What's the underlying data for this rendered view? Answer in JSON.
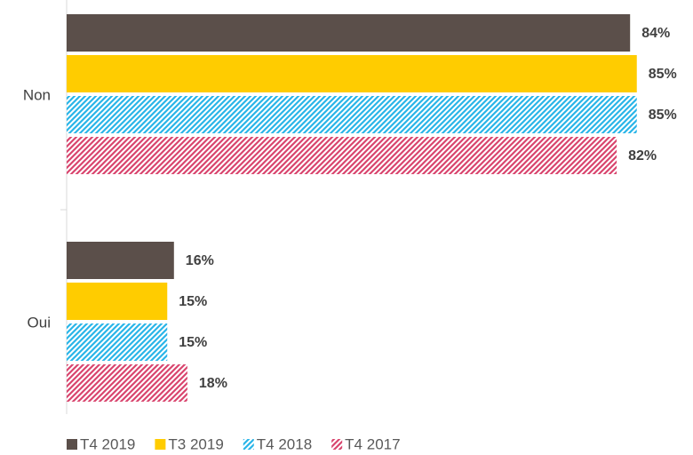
{
  "chart_data": {
    "type": "hbar",
    "categories": [
      "Non",
      "Oui"
    ],
    "series": [
      {
        "name": "T4 2019",
        "color": "#5b4f4a",
        "hatch": false,
        "values": [
          84,
          16
        ],
        "value_labels": [
          "84%",
          "16%"
        ]
      },
      {
        "name": "T3 2019",
        "color": "#ffcc00",
        "hatch": false,
        "values": [
          85,
          15
        ],
        "value_labels": [
          "85%",
          "15%"
        ]
      },
      {
        "name": "T4 2018",
        "color": "#29b5e8",
        "hatch": true,
        "values": [
          85,
          15
        ],
        "value_labels": [
          "85%",
          "15%"
        ]
      },
      {
        "name": "T4 2017",
        "color": "#d9456e",
        "hatch": true,
        "values": [
          82,
          18
        ],
        "value_labels": [
          "82%",
          "18%"
        ]
      }
    ],
    "xlim": [
      0,
      100
    ],
    "legend": "bottom"
  }
}
